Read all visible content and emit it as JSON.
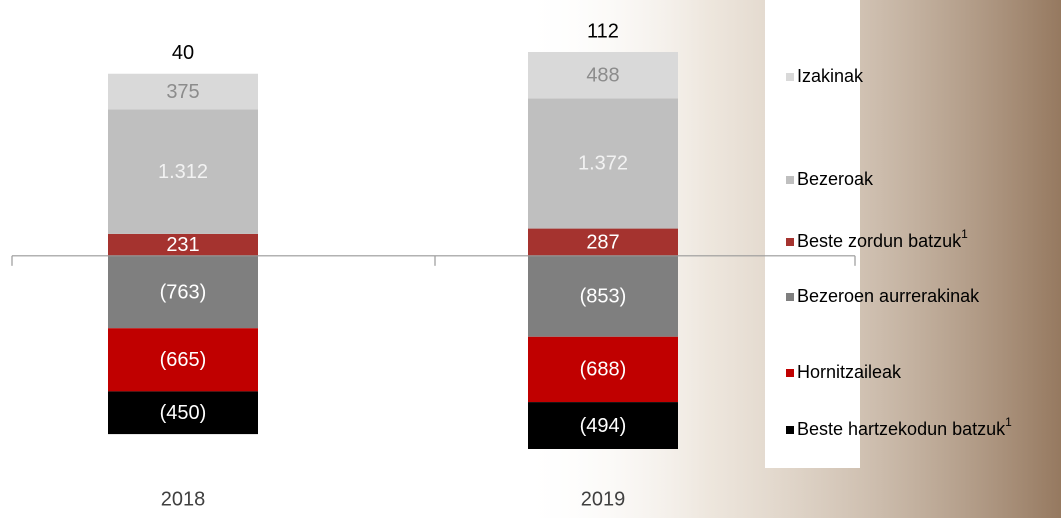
{
  "chart_data": {
    "type": "bar",
    "stacked": true,
    "categories": [
      "2018",
      "2019"
    ],
    "totals": [
      40,
      112
    ],
    "series": [
      {
        "name": "Izakinak",
        "color": "#d9d9d9",
        "values": [
          375,
          488
        ],
        "value_labels": [
          "375",
          "488"
        ]
      },
      {
        "name": "Bezeroak",
        "color": "#bfbfbf",
        "values": [
          1312,
          1372
        ],
        "value_labels": [
          "1.312",
          "1.372"
        ]
      },
      {
        "name": "Beste zordun batzuk",
        "note": "1",
        "color": "#a5332f",
        "values": [
          231,
          287
        ],
        "value_labels": [
          "231",
          "287"
        ]
      },
      {
        "name": "Bezeroen aurrerakinak",
        "color": "#7f7f7f",
        "values": [
          -763,
          -853
        ],
        "value_labels": [
          "(763)",
          "(853)"
        ]
      },
      {
        "name": "Hornitzaileak",
        "color": "#c00000",
        "values": [
          -665,
          -688
        ],
        "value_labels": [
          "(665)",
          "(688)"
        ]
      },
      {
        "name": "Beste hartzekodun batzuk",
        "note": "1",
        "color": "#000000",
        "values": [
          -450,
          -494
        ],
        "value_labels": [
          "(450)",
          "(494)"
        ]
      }
    ]
  }
}
